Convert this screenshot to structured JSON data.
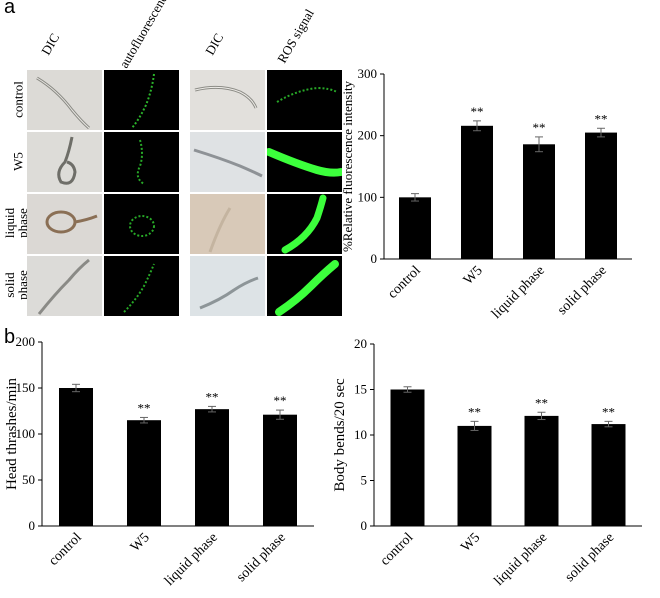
{
  "panels": {
    "a": "a",
    "b": "b"
  },
  "image_grid": {
    "columns": [
      "DIC",
      "autofluorescence",
      "DIC",
      "ROS signal"
    ],
    "rows": [
      {
        "label": [
          "control"
        ],
        "signal": "weak"
      },
      {
        "label": [
          "W5"
        ],
        "signal": "strong"
      },
      {
        "label": [
          "liquid",
          "phase"
        ],
        "signal": "strong"
      },
      {
        "label": [
          "solid",
          "phase"
        ],
        "signal": "strong"
      }
    ]
  },
  "colors": {
    "bar": "#000000",
    "background": "#ffffff",
    "fluorescence": "#3cff3c",
    "dark_tile": "#000000"
  },
  "chart_data": [
    {
      "type": "bar",
      "categories": [
        "control",
        "W5",
        "liquid phase",
        "solid phase"
      ],
      "values": [
        100,
        216,
        186,
        205
      ],
      "errors": [
        6,
        8,
        12,
        7
      ],
      "annotations": [
        "",
        "**",
        "**",
        "**"
      ],
      "ylabel": "%Relative fluorescence intensity",
      "xlabel": "",
      "ylim": [
        0,
        300
      ],
      "yticks": [
        0,
        100,
        200,
        300
      ],
      "grid": false
    },
    {
      "type": "bar",
      "categories": [
        "control",
        "W5",
        "liquid phase",
        "solid phase"
      ],
      "values": [
        150,
        115,
        127,
        121
      ],
      "errors": [
        4,
        3,
        3,
        5
      ],
      "annotations": [
        "",
        "**",
        "**",
        "**"
      ],
      "ylabel": "Head thrashes/min",
      "xlabel": "",
      "ylim": [
        0,
        200
      ],
      "yticks": [
        0,
        50,
        100,
        150,
        200
      ],
      "grid": false
    },
    {
      "type": "bar",
      "categories": [
        "control",
        "W5",
        "liquid phase",
        "solid phase"
      ],
      "values": [
        15.0,
        11.0,
        12.1,
        11.2
      ],
      "errors": [
        0.3,
        0.5,
        0.4,
        0.3
      ],
      "annotations": [
        "",
        "**",
        "**",
        "**"
      ],
      "ylabel": "Body bends/20 sec",
      "xlabel": "",
      "ylim": [
        0,
        20
      ],
      "yticks": [
        0,
        5,
        10,
        15,
        20
      ],
      "grid": false
    }
  ]
}
